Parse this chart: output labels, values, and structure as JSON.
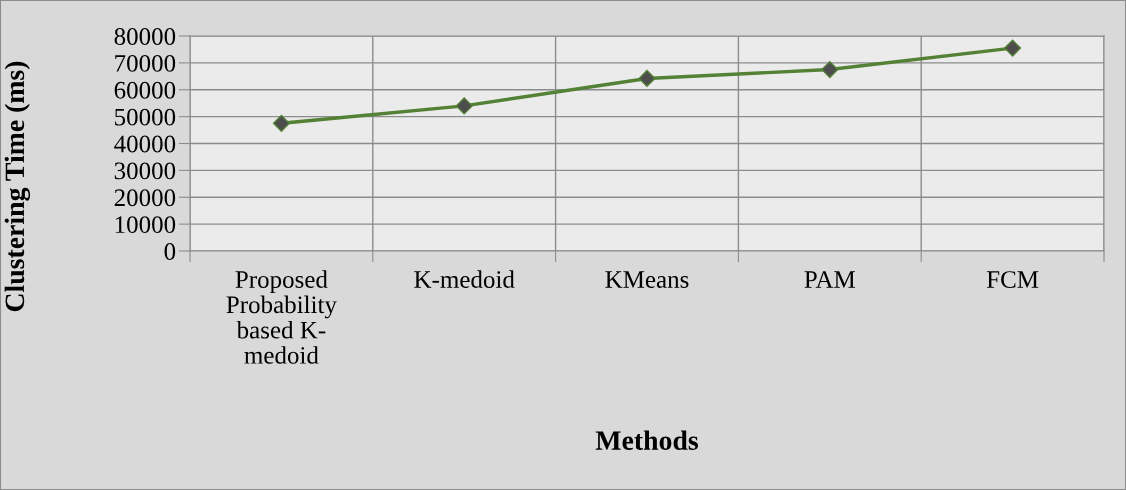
{
  "chart_data": {
    "type": "line",
    "xlabel": "Methods",
    "ylabel": "Clustering Time (ms)",
    "categories": [
      "Proposed\nProbability\nbased K-\nmedoid",
      "K-medoid",
      "KMeans",
      "PAM",
      "FCM"
    ],
    "series": [
      {
        "color": "#538135",
        "values": [
          47500,
          54000,
          64200,
          67500,
          75500
        ]
      }
    ],
    "ylim": [
      0,
      80000
    ],
    "yticks": [
      0,
      10000,
      20000,
      30000,
      40000,
      50000,
      60000,
      70000,
      80000
    ],
    "grid": true,
    "marker": "diamond",
    "line_style": "solid",
    "legend": false
  }
}
